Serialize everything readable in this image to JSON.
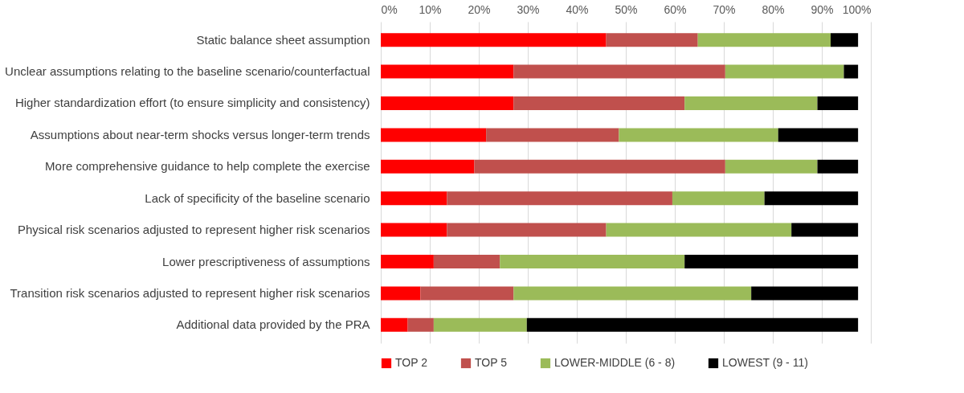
{
  "chart_data": {
    "type": "bar",
    "orientation": "horizontal",
    "stacked": true,
    "categories": [
      "Static balance sheet assumption",
      "Unclear assumptions relating to the baseline scenario/counterfactual",
      "Higher standardization effort (to ensure simplicity and consistency)",
      "Assumptions about near-term shocks versus longer-term trends",
      "More comprehensive guidance to help complete the exercise",
      "Lack of specificity of the baseline scenario",
      "Physical risk scenarios adjusted to represent higher risk scenarios",
      "Lower prescriptiveness of assumptions",
      "Transition risk scenarios adjusted to represent higher risk scenarios",
      "Additional data provided by the PRA"
    ],
    "series": [
      {
        "name": "TOP 2",
        "color": "#ff0000",
        "values": [
          46.0,
          27.1,
          27.1,
          21.5,
          19.1,
          13.5,
          13.5,
          10.8,
          8.1,
          5.5
        ]
      },
      {
        "name": "TOP 5",
        "color": "#c0504d",
        "values": [
          18.7,
          43.2,
          34.9,
          27.1,
          51.2,
          46.0,
          32.5,
          13.5,
          19.0,
          5.3
        ]
      },
      {
        "name": "LOWER-MIDDLE (6 - 8)",
        "color": "#9bbb59",
        "values": [
          27.1,
          24.2,
          27.1,
          32.5,
          18.8,
          18.8,
          37.8,
          37.7,
          48.5,
          19.0
        ]
      },
      {
        "name": "LOWEST (9 - 11)",
        "color": "#000000",
        "values": [
          5.6,
          2.9,
          8.3,
          16.3,
          8.3,
          19.1,
          13.6,
          35.4,
          21.8,
          67.6
        ]
      }
    ],
    "xlim": [
      0,
      100
    ],
    "xticks": [
      {
        "value": 0,
        "label": "0%"
      },
      {
        "value": 10,
        "label": "10%"
      },
      {
        "value": 20,
        "label": "20%"
      },
      {
        "value": 30,
        "label": "30%"
      },
      {
        "value": 40,
        "label": "40%"
      },
      {
        "value": 50,
        "label": "50%"
      },
      {
        "value": 60,
        "label": "60%"
      },
      {
        "value": 70,
        "label": "70%"
      },
      {
        "value": 80,
        "label": "80%"
      },
      {
        "value": 90,
        "label": "90%"
      },
      {
        "value": 100,
        "label": "100%"
      }
    ],
    "grid": "x",
    "legend": "bottom"
  }
}
